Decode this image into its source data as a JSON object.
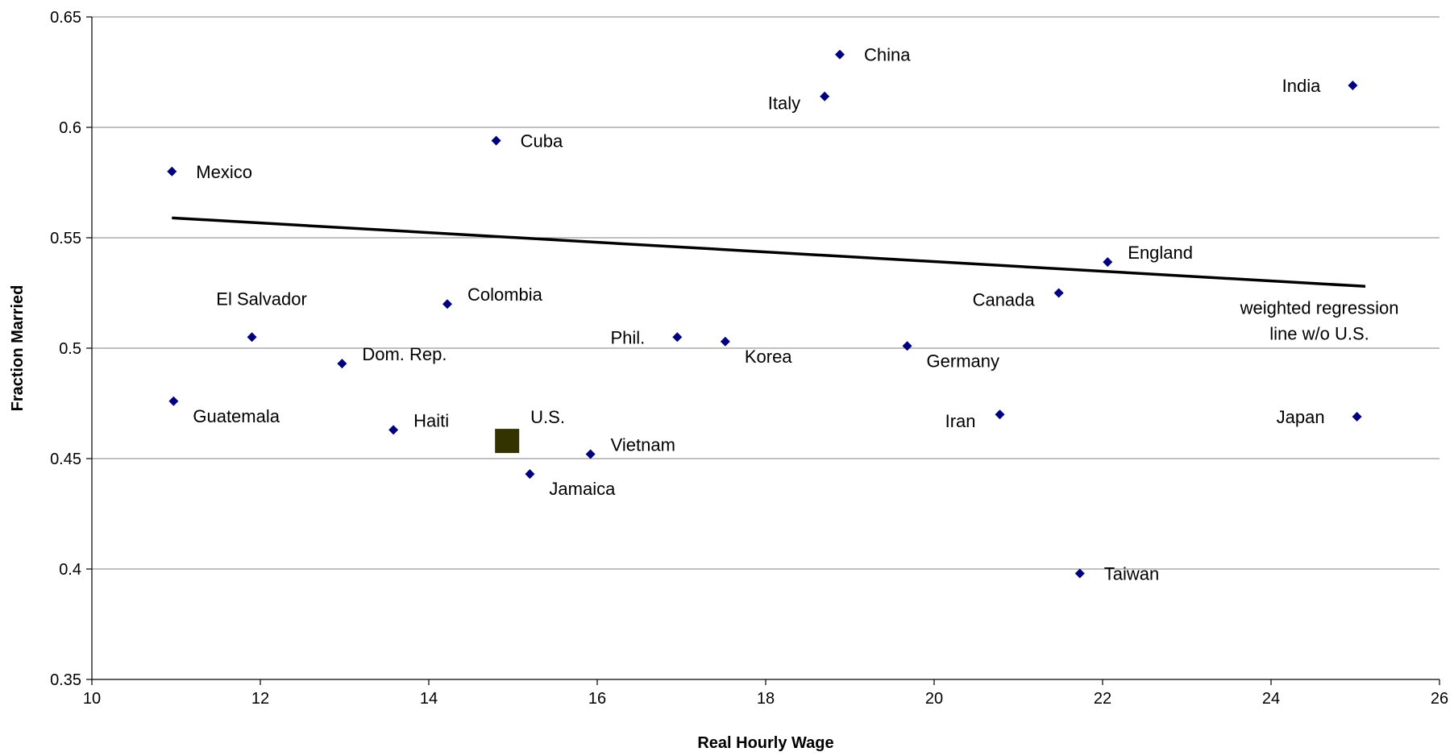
{
  "chart_data": {
    "type": "scatter",
    "xlabel": "Real Hourly Wage",
    "ylabel": "Fraction Married",
    "xlim": [
      10,
      26
    ],
    "ylim": [
      0.35,
      0.65
    ],
    "xticks": [
      "10",
      "12",
      "14",
      "16",
      "18",
      "20",
      "22",
      "24",
      "26"
    ],
    "yticks": [
      "0.35",
      "0.4",
      "0.45",
      "0.5",
      "0.55",
      "0.6",
      "0.65"
    ],
    "grid": "horizontal",
    "colors": {
      "points": "#00007f",
      "us_marker": "#333300",
      "line": "#000000"
    },
    "points": [
      {
        "label": "Mexico",
        "x": 10.95,
        "y": 0.58,
        "pos": "right"
      },
      {
        "label": "Guatemala",
        "x": 10.97,
        "y": 0.476,
        "pos": "right-below"
      },
      {
        "label": "El Salvador",
        "x": 11.9,
        "y": 0.505,
        "pos": "above"
      },
      {
        "label": "Dom. Rep.",
        "x": 12.97,
        "y": 0.493,
        "pos": "right-up"
      },
      {
        "label": "Haiti",
        "x": 13.58,
        "y": 0.463,
        "pos": "right-up"
      },
      {
        "label": "Colombia",
        "x": 14.22,
        "y": 0.52,
        "pos": "right-up"
      },
      {
        "label": "Cuba",
        "x": 14.8,
        "y": 0.594,
        "pos": "right"
      },
      {
        "label": "Jamaica",
        "x": 15.2,
        "y": 0.443,
        "pos": "right-below"
      },
      {
        "label": "Vietnam",
        "x": 15.92,
        "y": 0.452,
        "pos": "right-up"
      },
      {
        "label": "Phil.",
        "x": 16.95,
        "y": 0.505,
        "pos": "left"
      },
      {
        "label": "Korea",
        "x": 17.52,
        "y": 0.503,
        "pos": "right-below"
      },
      {
        "label": "Italy",
        "x": 18.7,
        "y": 0.614,
        "pos": "left-below"
      },
      {
        "label": "China",
        "x": 18.88,
        "y": 0.633,
        "pos": "right"
      },
      {
        "label": "Germany",
        "x": 19.68,
        "y": 0.501,
        "pos": "right-below"
      },
      {
        "label": "Iran",
        "x": 20.78,
        "y": 0.47,
        "pos": "left-below"
      },
      {
        "label": "Canada",
        "x": 21.48,
        "y": 0.525,
        "pos": "left-below"
      },
      {
        "label": "Taiwan",
        "x": 21.73,
        "y": 0.398,
        "pos": "right"
      },
      {
        "label": "England",
        "x": 22.06,
        "y": 0.539,
        "pos": "right-up"
      },
      {
        "label": "India",
        "x": 24.97,
        "y": 0.619,
        "pos": "left"
      },
      {
        "label": "Japan",
        "x": 25.02,
        "y": 0.469,
        "pos": "left"
      }
    ],
    "us_point": {
      "label": "U.S.",
      "x": 14.93,
      "y": 0.458
    },
    "regression_line": {
      "label_lines": [
        "weighted regression",
        "line w/o U.S."
      ],
      "x": [
        10.95,
        25.12
      ],
      "y": [
        0.559,
        0.528
      ]
    }
  }
}
